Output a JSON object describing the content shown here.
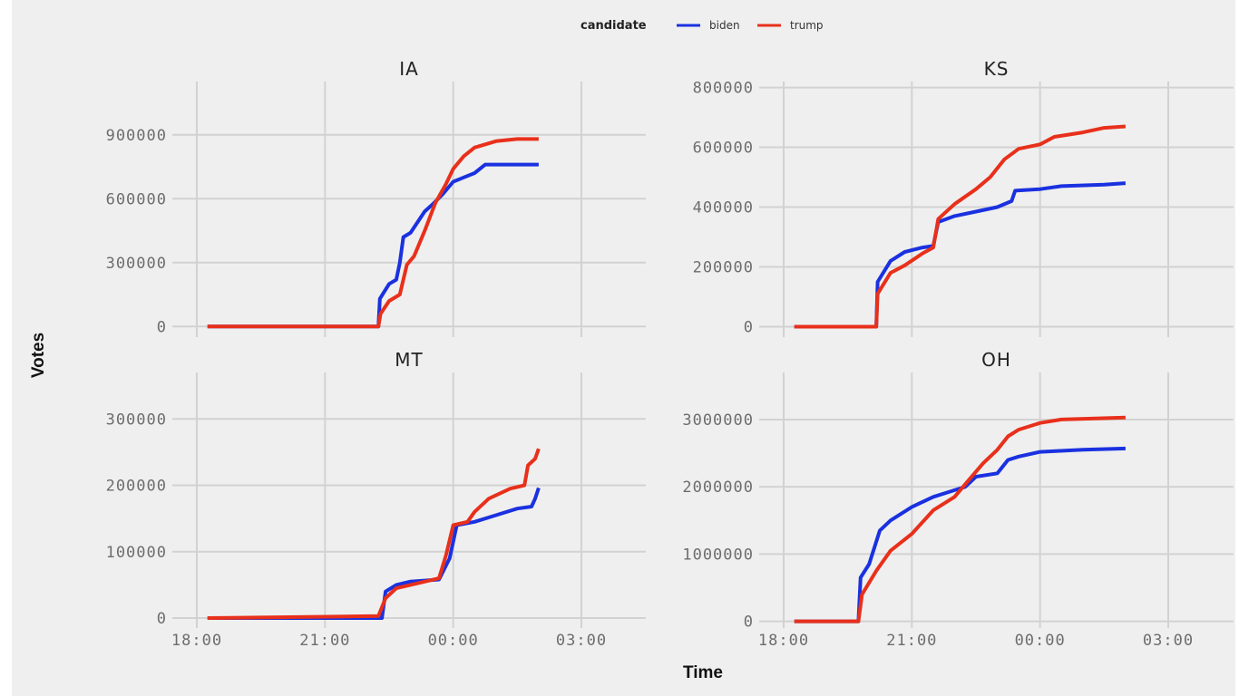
{
  "chart_data": {
    "type": "line",
    "xlabel": "Time",
    "ylabel": "Votes",
    "x_ticks": [
      "18:00",
      "21:00",
      "00:00",
      "03:00"
    ],
    "legend": {
      "title": "candidate",
      "position": "top",
      "entries": [
        {
          "name": "biden",
          "color": "#1a31e0"
        },
        {
          "name": "trump",
          "color": "#e8301b"
        }
      ]
    },
    "grid": true,
    "panels": [
      {
        "title": "IA",
        "y_ticks": [
          0,
          300000,
          600000,
          900000
        ],
        "ylim": [
          -50000,
          1150000
        ],
        "series": [
          {
            "name": "biden",
            "color": "#1a31e0",
            "points": [
              [
                "18:15",
                0
              ],
              [
                "22:15",
                0
              ],
              [
                "22:17",
                130000
              ],
              [
                "22:30",
                200000
              ],
              [
                "22:40",
                220000
              ],
              [
                "22:45",
                300000
              ],
              [
                "22:50",
                420000
              ],
              [
                "23:00",
                440000
              ],
              [
                "23:10",
                490000
              ],
              [
                "23:20",
                540000
              ],
              [
                "23:30",
                570000
              ],
              [
                "23:45",
                620000
              ],
              [
                "24:00",
                680000
              ],
              [
                "24:30",
                720000
              ],
              [
                "24:45",
                760000
              ],
              [
                "26:00",
                760000
              ]
            ]
          },
          {
            "name": "trump",
            "color": "#e8301b",
            "points": [
              [
                "18:15",
                0
              ],
              [
                "22:15",
                0
              ],
              [
                "22:18",
                60000
              ],
              [
                "22:30",
                120000
              ],
              [
                "22:45",
                150000
              ],
              [
                "22:55",
                290000
              ],
              [
                "23:05",
                330000
              ],
              [
                "23:20",
                450000
              ],
              [
                "23:35",
                580000
              ],
              [
                "23:50",
                670000
              ],
              [
                "24:00",
                740000
              ],
              [
                "24:15",
                800000
              ],
              [
                "24:30",
                840000
              ],
              [
                "25:00",
                870000
              ],
              [
                "25:30",
                880000
              ],
              [
                "26:00",
                880000
              ]
            ]
          }
        ]
      },
      {
        "title": "KS",
        "y_ticks": [
          0,
          200000,
          400000,
          600000,
          800000
        ],
        "ylim": [
          -35000,
          820000
        ],
        "series": [
          {
            "name": "biden",
            "color": "#1a31e0",
            "points": [
              [
                "18:15",
                0
              ],
              [
                "20:10",
                0
              ],
              [
                "20:12",
                150000
              ],
              [
                "20:30",
                220000
              ],
              [
                "20:50",
                250000
              ],
              [
                "21:15",
                265000
              ],
              [
                "21:30",
                270000
              ],
              [
                "21:37",
                350000
              ],
              [
                "22:00",
                370000
              ],
              [
                "22:30",
                385000
              ],
              [
                "23:00",
                400000
              ],
              [
                "23:20",
                420000
              ],
              [
                "23:25",
                455000
              ],
              [
                "24:00",
                460000
              ],
              [
                "24:30",
                470000
              ],
              [
                "25:30",
                475000
              ],
              [
                "26:00",
                480000
              ]
            ]
          },
          {
            "name": "trump",
            "color": "#e8301b",
            "points": [
              [
                "18:15",
                0
              ],
              [
                "20:10",
                0
              ],
              [
                "20:12",
                110000
              ],
              [
                "20:30",
                180000
              ],
              [
                "20:50",
                205000
              ],
              [
                "21:15",
                245000
              ],
              [
                "21:30",
                265000
              ],
              [
                "21:37",
                360000
              ],
              [
                "22:00",
                410000
              ],
              [
                "22:30",
                460000
              ],
              [
                "22:50",
                500000
              ],
              [
                "23:10",
                560000
              ],
              [
                "23:30",
                595000
              ],
              [
                "24:00",
                610000
              ],
              [
                "24:20",
                635000
              ],
              [
                "25:00",
                650000
              ],
              [
                "25:30",
                665000
              ],
              [
                "26:00",
                670000
              ]
            ]
          }
        ]
      },
      {
        "title": "MT",
        "y_ticks": [
          0,
          100000,
          200000,
          300000
        ],
        "ylim": [
          -15000,
          370000
        ],
        "series": [
          {
            "name": "biden",
            "color": "#1a31e0",
            "points": [
              [
                "18:15",
                0
              ],
              [
                "22:20",
                0
              ],
              [
                "22:25",
                40000
              ],
              [
                "22:40",
                50000
              ],
              [
                "23:00",
                55000
              ],
              [
                "23:40",
                58000
              ],
              [
                "23:55",
                90000
              ],
              [
                "24:05",
                140000
              ],
              [
                "24:30",
                145000
              ],
              [
                "25:00",
                155000
              ],
              [
                "25:30",
                165000
              ],
              [
                "25:50",
                168000
              ],
              [
                "25:55",
                180000
              ],
              [
                "26:00",
                196000
              ]
            ]
          },
          {
            "name": "trump",
            "color": "#e8301b",
            "points": [
              [
                "18:15",
                0
              ],
              [
                "22:15",
                3000
              ],
              [
                "22:25",
                30000
              ],
              [
                "22:40",
                45000
              ],
              [
                "23:00",
                50000
              ],
              [
                "23:40",
                60000
              ],
              [
                "23:50",
                95000
              ],
              [
                "24:00",
                140000
              ],
              [
                "24:20",
                145000
              ],
              [
                "24:30",
                160000
              ],
              [
                "24:50",
                180000
              ],
              [
                "25:20",
                195000
              ],
              [
                "25:40",
                200000
              ],
              [
                "25:45",
                230000
              ],
              [
                "25:55",
                240000
              ],
              [
                "26:00",
                255000
              ]
            ]
          }
        ]
      },
      {
        "title": "OH",
        "y_ticks": [
          0,
          1000000,
          2000000,
          3000000
        ],
        "ylim": [
          -100000,
          3700000
        ],
        "series": [
          {
            "name": "biden",
            "color": "#1a31e0",
            "points": [
              [
                "18:15",
                0
              ],
              [
                "19:45",
                0
              ],
              [
                "19:48",
                650000
              ],
              [
                "20:00",
                850000
              ],
              [
                "20:15",
                1350000
              ],
              [
                "20:30",
                1500000
              ],
              [
                "21:00",
                1700000
              ],
              [
                "21:30",
                1850000
              ],
              [
                "22:00",
                1950000
              ],
              [
                "22:15",
                2000000
              ],
              [
                "22:30",
                2150000
              ],
              [
                "23:00",
                2200000
              ],
              [
                "23:15",
                2400000
              ],
              [
                "23:30",
                2450000
              ],
              [
                "24:00",
                2520000
              ],
              [
                "25:00",
                2550000
              ],
              [
                "26:00",
                2570000
              ]
            ]
          },
          {
            "name": "trump",
            "color": "#e8301b",
            "points": [
              [
                "18:15",
                0
              ],
              [
                "19:45",
                0
              ],
              [
                "19:50",
                400000
              ],
              [
                "20:10",
                750000
              ],
              [
                "20:30",
                1050000
              ],
              [
                "21:00",
                1300000
              ],
              [
                "21:30",
                1650000
              ],
              [
                "22:00",
                1850000
              ],
              [
                "22:20",
                2100000
              ],
              [
                "22:40",
                2350000
              ],
              [
                "23:00",
                2550000
              ],
              [
                "23:15",
                2750000
              ],
              [
                "23:30",
                2850000
              ],
              [
                "24:00",
                2950000
              ],
              [
                "24:30",
                3000000
              ],
              [
                "26:00",
                3030000
              ]
            ]
          }
        ]
      }
    ]
  }
}
